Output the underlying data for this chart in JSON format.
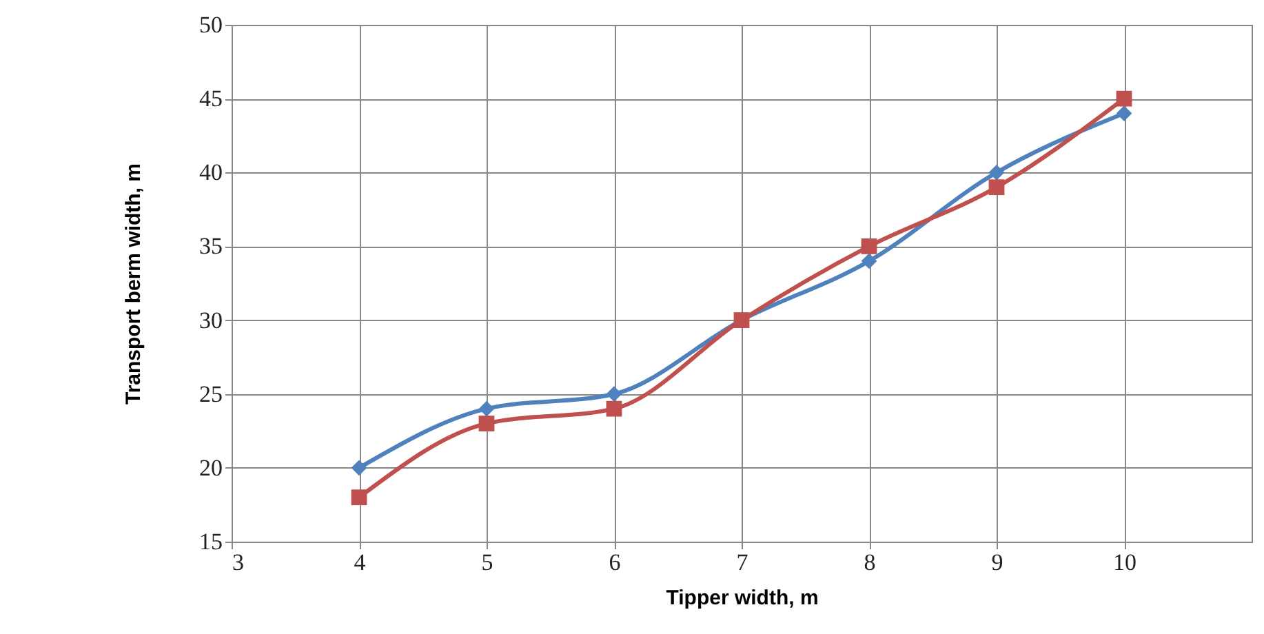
{
  "chart_data": {
    "type": "line",
    "xlabel": "Tipper width, m",
    "ylabel": "Transport berm width, m",
    "x": [
      4,
      5,
      6,
      7,
      8,
      9,
      10
    ],
    "series": [
      {
        "color": "#4f81bd",
        "marker": "diamond",
        "values": [
          20,
          24,
          25,
          30,
          34,
          40,
          44
        ]
      },
      {
        "color": "#c0504d",
        "marker": "square",
        "values": [
          18,
          23,
          24,
          30,
          35,
          39,
          45
        ]
      }
    ],
    "xlim": [
      3,
      11
    ],
    "xticks": [
      3,
      4,
      5,
      6,
      7,
      8,
      9,
      10
    ],
    "ylim": [
      15,
      50
    ],
    "yticks": [
      15,
      20,
      25,
      30,
      35,
      40,
      45,
      50
    ],
    "grid": true,
    "line_style": "solid"
  }
}
